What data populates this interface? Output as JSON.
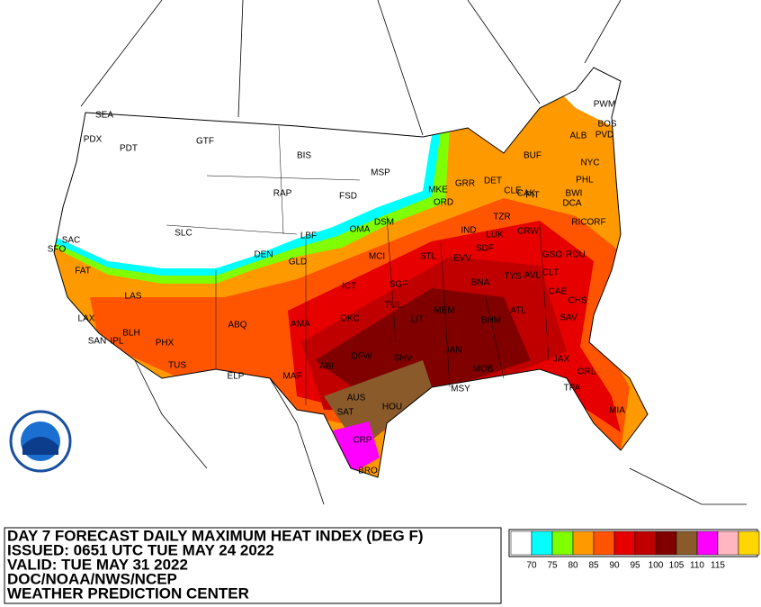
{
  "header": {
    "lines": [
      "DAY 7 FORECAST DAILY MAXIMUM HEAT INDEX (DEG F)",
      "ISSUED: 0651 UTC TUE MAY 24 2022",
      "VALID: TUE MAY 31 2022",
      "DOC/NOAA/NWS/NCEP",
      "WEATHER PREDICTION CENTER"
    ]
  },
  "legend": {
    "colors": [
      "#ffffff",
      "#00ffff",
      "#80ff00",
      "#ff9900",
      "#ff5500",
      "#e60000",
      "#c00000",
      "#800000",
      "#8b5a2b",
      "#ff00ff",
      "#ffb6c1",
      "#ffd700"
    ],
    "labels": [
      70,
      75,
      80,
      85,
      90,
      95,
      100,
      105,
      110,
      115
    ]
  },
  "cities": [
    "SEA",
    "PDX",
    "PDT",
    "GTF",
    "BIS",
    "MSP",
    "RAP",
    "FSD",
    "DSM",
    "OMA",
    "LBF",
    "DEN",
    "GLD",
    "SLC",
    "SAC",
    "SFO",
    "FAT",
    "LAS",
    "LAX",
    "SAN",
    "IPL",
    "BLH",
    "PHX",
    "TUS",
    "ABQ",
    "ELP",
    "AMA",
    "MAF",
    "ABI",
    "DFW",
    "OKC",
    "ICT",
    "MCI",
    "TUL",
    "SGF",
    "STL",
    "LIT",
    "SHV",
    "AUS",
    "SAT",
    "HOU",
    "CRP",
    "BRO",
    "MEM",
    "JAN",
    "MSY",
    "MOB",
    "BHM",
    "ATL",
    "TYS",
    "AVL",
    "CLT",
    "CAE",
    "CHS",
    "SAV",
    "JAX",
    "ORL",
    "TPA",
    "MIA",
    "BNA",
    "EVV",
    "SDF",
    "IND",
    "LUK",
    "ORD",
    "MKE",
    "GRR",
    "DET",
    "CLE",
    "CAK",
    "PIT",
    "BUF",
    "ALB",
    "BOS",
    "PWM",
    "PVD",
    "NYC",
    "PHL",
    "BWI",
    "DCA",
    "RIC",
    "ORF",
    "GSO",
    "RDU",
    "CRW",
    "TZR"
  ]
}
